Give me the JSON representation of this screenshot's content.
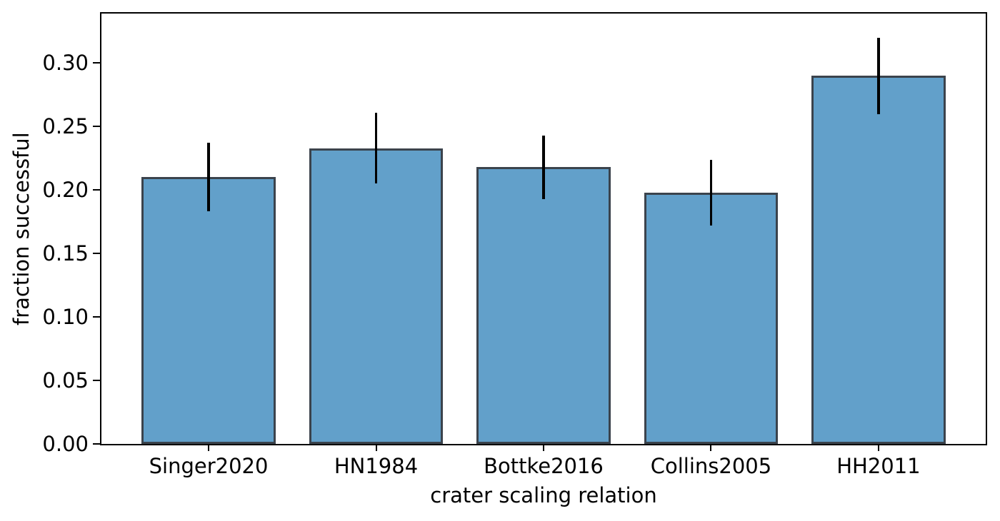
{
  "chart_data": {
    "type": "bar",
    "categories": [
      "Singer2020",
      "HN1984",
      "Bottke2016",
      "Collins2005",
      "HH2011"
    ],
    "values": [
      0.21,
      0.233,
      0.218,
      0.198,
      0.29
    ],
    "errors": [
      0.027,
      0.028,
      0.025,
      0.026,
      0.03
    ],
    "xlabel": "crater scaling relation",
    "ylabel": "fraction successful",
    "ylim": [
      0,
      0.339
    ],
    "xlim": [
      -0.64,
      4.64
    ],
    "yticks": [
      0.0,
      0.05,
      0.1,
      0.15,
      0.2,
      0.25,
      0.3
    ],
    "ytick_format_decimals": 2,
    "bar_width_fraction": 0.8,
    "grid": false,
    "legend": "none",
    "bar_color": "#62a0ca",
    "bar_edge_color": "#3b434c",
    "error_bar_color": "#000000",
    "spine_color": "#000000"
  }
}
